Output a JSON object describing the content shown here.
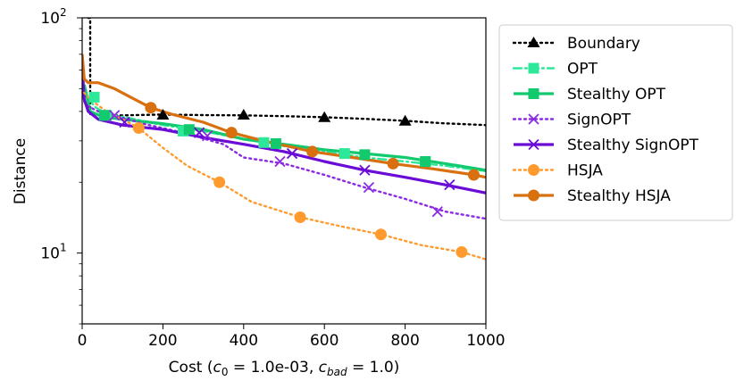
{
  "chart_data": {
    "type": "line",
    "xlabel_prefix": "Cost (",
    "xlabel_c0_var": "c",
    "xlabel_c0_sub": "0",
    "xlabel_c0_val": " = 1.0e-03, ",
    "xlabel_cbad_var": "c",
    "xlabel_cbad_sub": "bad",
    "xlabel_cbad_val": " = 1.0)",
    "ylabel": "Distance",
    "yscale": "log",
    "xlim": [
      0,
      1000
    ],
    "ylim": [
      5,
      100
    ],
    "xticks": [
      0,
      200,
      400,
      600,
      800,
      1000
    ],
    "xtick_labels": [
      "0",
      "200",
      "400",
      "600",
      "800",
      "1000"
    ],
    "yticks": [
      {
        "value": 10,
        "base": "10",
        "exp": "1"
      },
      {
        "value": 100,
        "base": "10",
        "exp": "2"
      }
    ],
    "legend_location": "outside-right",
    "series": [
      {
        "name": "Boundary",
        "color": "#000000",
        "dash": "dotted",
        "marker": "triangle",
        "x": [
          15,
          20,
          20,
          30,
          60,
          100,
          200,
          300,
          400,
          500,
          600,
          700,
          800,
          900,
          1000
        ],
        "y": [
          100,
          100,
          39,
          38.8,
          38.5,
          38.5,
          38.8,
          38.6,
          38.5,
          38.2,
          37.8,
          37.2,
          36.5,
          35.6,
          35.0
        ],
        "markers_x": [
          200,
          400,
          600,
          800
        ],
        "markers_y": [
          38.6,
          38.6,
          37.7,
          36.4
        ]
      },
      {
        "name": "OPT",
        "color": "#2ee89a",
        "dash": "dashdot",
        "marker": "square",
        "x": [
          5,
          15,
          30,
          60,
          100,
          200,
          300,
          400,
          500,
          600,
          700,
          800,
          900,
          1000
        ],
        "y": [
          47,
          46,
          42,
          39,
          38,
          35,
          33,
          30.5,
          28.5,
          27,
          25.5,
          24.5,
          23.5,
          22.3
        ],
        "markers_x": [
          30,
          60,
          250,
          450,
          650,
          850
        ],
        "markers_y": [
          46,
          38.5,
          33,
          29.5,
          26.5,
          24.5
        ]
      },
      {
        "name": "Stealthy OPT",
        "color": "#12c96e",
        "dash": "solid",
        "marker": "square",
        "x": [
          5,
          20,
          50,
          100,
          200,
          300,
          400,
          500,
          600,
          700,
          800,
          900,
          1000
        ],
        "y": [
          52,
          40,
          38,
          37,
          35.5,
          33.5,
          30.5,
          29,
          27.5,
          26.5,
          25.5,
          24,
          22.5
        ],
        "markers_x": [
          55,
          265,
          480,
          700,
          850
        ],
        "markers_y": [
          38.5,
          33.5,
          29.2,
          26.2,
          24.5
        ]
      },
      {
        "name": "SignOPT",
        "color": "#8a2be2",
        "dash": "dotted",
        "marker": "x",
        "x": [
          5,
          15,
          40,
          80,
          150,
          250,
          350,
          400,
          500,
          600,
          700,
          800,
          900,
          1000
        ],
        "y": [
          44,
          42,
          40,
          38.5,
          35.5,
          32.5,
          29,
          25.5,
          24,
          21.5,
          19,
          17,
          15,
          14
        ],
        "markers_x": [
          80,
          310,
          490,
          710,
          880
        ],
        "markers_y": [
          38.5,
          31.5,
          24.5,
          19,
          15
        ]
      },
      {
        "name": "Stealthy SignOPT",
        "color": "#6a0bd6",
        "dash": "solid",
        "marker": "x",
        "x": [
          0,
          5,
          15,
          40,
          100,
          200,
          300,
          400,
          500,
          600,
          700,
          800,
          900,
          1000
        ],
        "y": [
          62,
          45,
          40,
          37,
          35,
          33.5,
          31,
          29,
          27,
          24.5,
          22.5,
          21,
          19.5,
          18
        ],
        "markers_x": [
          105,
          290,
          520,
          700,
          910
        ],
        "markers_y": [
          36,
          32.5,
          26.5,
          22.5,
          19.5
        ]
      },
      {
        "name": "HSJA",
        "color": "#ff9a2e",
        "dash": "dotted",
        "marker": "circle",
        "x": [
          5,
          20,
          60,
          100,
          140,
          200,
          260,
          340,
          420,
          540,
          640,
          740,
          840,
          940,
          1000
        ],
        "y": [
          48,
          45,
          40,
          37,
          34,
          28,
          23.5,
          20,
          16.5,
          14.2,
          13,
          12,
          10.8,
          10.1,
          9.4
        ],
        "markers_x": [
          140,
          340,
          540,
          740,
          940
        ],
        "markers_y": [
          34,
          20,
          14.2,
          12,
          10.1
        ]
      },
      {
        "name": "Stealthy HSJA",
        "color": "#d9700f",
        "dash": "solid",
        "marker": "circle",
        "x": [
          0,
          5,
          15,
          40,
          80,
          120,
          170,
          220,
          300,
          370,
          450,
          570,
          670,
          770,
          870,
          970,
          1000
        ],
        "y": [
          70,
          55,
          53,
          53,
          50,
          46,
          41.5,
          39,
          36,
          32.5,
          30,
          27,
          25.5,
          24,
          22.8,
          21.5,
          21
        ],
        "markers_x": [
          170,
          370,
          570,
          770,
          970
        ],
        "markers_y": [
          41.5,
          32.5,
          27,
          24,
          21.5
        ]
      }
    ]
  }
}
